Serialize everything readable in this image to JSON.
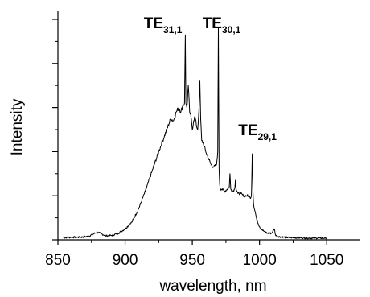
{
  "chart_data": {
    "type": "line",
    "title": "",
    "xlabel": "wavelength, nm",
    "ylabel": "Intensity",
    "xlim": [
      850,
      1075
    ],
    "ylim": [
      0,
      1
    ],
    "x_ticks": [
      850,
      900,
      950,
      1000,
      1050
    ],
    "y_tick_labels_shown": false,
    "grid": false,
    "legend": "none",
    "line_color": "#000000",
    "annotations": [
      {
        "base": "TE",
        "sub": "31,1",
        "x": 945
      },
      {
        "base": "TE",
        "sub": "30,1",
        "x": 969.5
      },
      {
        "base": "TE",
        "sub": "29,1",
        "x": 995
      }
    ],
    "series": [
      {
        "x": [
          854,
          860,
          866,
          872,
          876,
          879,
          882,
          886,
          890,
          895,
          900,
          905,
          910,
          915,
          920,
          925,
          928,
          931,
          934,
          936,
          938,
          940,
          941.5,
          943,
          944.2,
          944.8,
          945.2,
          946,
          947,
          948,
          949,
          950,
          951,
          952,
          953,
          954,
          955,
          955.6,
          956.2,
          957,
          958,
          960,
          962,
          964,
          966,
          968,
          968.9,
          969.4,
          969.9,
          970.4,
          971,
          972,
          974,
          976,
          977.5,
          978,
          978.6,
          980,
          981.5,
          982,
          982.6,
          984,
          986,
          988,
          990,
          992,
          993,
          994,
          994.6,
          995.1,
          995.6,
          996.2,
          997,
          998,
          1000,
          1003,
          1006,
          1009,
          1011,
          1012,
          1014,
          1018,
          1022,
          1028,
          1034,
          1040,
          1045,
          1050
        ],
        "y": [
          0.01,
          0.012,
          0.012,
          0.015,
          0.025,
          0.035,
          0.028,
          0.018,
          0.02,
          0.03,
          0.05,
          0.08,
          0.14,
          0.22,
          0.31,
          0.4,
          0.45,
          0.5,
          0.55,
          0.54,
          0.58,
          0.6,
          0.58,
          0.61,
          0.62,
          0.93,
          0.62,
          0.6,
          0.7,
          0.58,
          0.56,
          0.5,
          0.54,
          0.56,
          0.52,
          0.5,
          0.6,
          0.72,
          0.55,
          0.45,
          0.44,
          0.4,
          0.37,
          0.34,
          0.33,
          0.34,
          0.4,
          0.96,
          0.32,
          0.25,
          0.23,
          0.23,
          0.22,
          0.23,
          0.24,
          0.3,
          0.23,
          0.22,
          0.23,
          0.27,
          0.23,
          0.21,
          0.21,
          0.2,
          0.2,
          0.2,
          0.19,
          0.2,
          0.39,
          0.22,
          0.16,
          0.14,
          0.12,
          0.09,
          0.06,
          0.04,
          0.03,
          0.03,
          0.05,
          0.02,
          0.015,
          0.012,
          0.01,
          0.01,
          0.008,
          0.008,
          0.008,
          0.008
        ]
      }
    ]
  }
}
